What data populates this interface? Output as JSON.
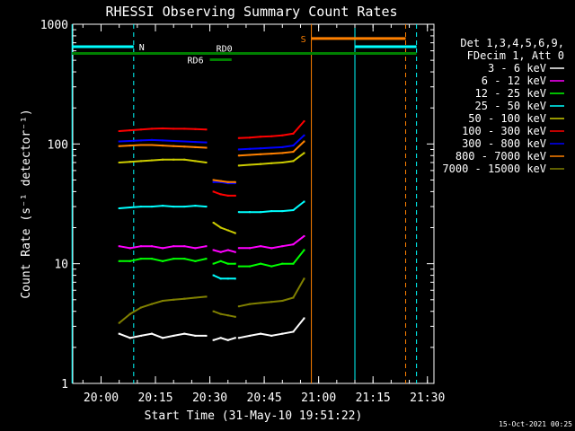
{
  "chart_data": {
    "type": "line",
    "title": "RHESSI Observing Summary Count Rates",
    "xlabel": "Start Time (31-May-10 19:51:22)",
    "ylabel": "Count Rate (s⁻¹ detector⁻¹)",
    "yscale": "log",
    "ylim": [
      1,
      1000
    ],
    "xlim_minutes": [
      19.87,
      21.53
    ],
    "xticks": [
      "20:00",
      "20:15",
      "20:30",
      "20:45",
      "21:00",
      "21:15",
      "21:30"
    ],
    "yticks": [
      "1",
      "10",
      "100",
      "1000"
    ],
    "grid": false,
    "legend_position": "right",
    "legend_header": [
      "Det 1,3,4,5,6,9,",
      "FDecim 1, Att 0"
    ],
    "series": [
      {
        "name": "3 - 6 keV",
        "color": "#ffffff",
        "segments": [
          {
            "x": [
              "20:05",
              "20:08",
              "20:11",
              "20:14",
              "20:17",
              "20:20",
              "20:23",
              "20:26",
              "20:29"
            ],
            "y": [
              2.6,
              2.4,
              2.5,
              2.6,
              2.4,
              2.5,
              2.6,
              2.5,
              2.5
            ]
          },
          {
            "x": [
              "20:31",
              "20:33",
              "20:35",
              "20:37"
            ],
            "y": [
              2.3,
              2.4,
              2.3,
              2.4
            ]
          },
          {
            "x": [
              "20:38",
              "20:41",
              "20:44",
              "20:47",
              "20:50",
              "20:53",
              "20:56"
            ],
            "y": [
              2.4,
              2.5,
              2.6,
              2.5,
              2.6,
              2.7,
              3.5
            ]
          }
        ]
      },
      {
        "name": "6 - 12 keV",
        "color": "#ff00ff",
        "segments": [
          {
            "x": [
              "20:05",
              "20:08",
              "20:11",
              "20:14",
              "20:17",
              "20:20",
              "20:23",
              "20:26",
              "20:29"
            ],
            "y": [
              14,
              13.5,
              14,
              14,
              13.5,
              14,
              14,
              13.5,
              14
            ]
          },
          {
            "x": [
              "20:31",
              "20:33",
              "20:35",
              "20:37"
            ],
            "y": [
              13,
              12.5,
              13,
              12.5
            ]
          },
          {
            "x": [
              "20:38",
              "20:41",
              "20:44",
              "20:47",
              "20:50",
              "20:53",
              "20:56"
            ],
            "y": [
              13.5,
              13.5,
              14,
              13.5,
              14,
              14.5,
              17
            ]
          }
        ]
      },
      {
        "name": "12 - 25 keV",
        "color": "#00ff00",
        "segments": [
          {
            "x": [
              "20:05",
              "20:08",
              "20:11",
              "20:14",
              "20:17",
              "20:20",
              "20:23",
              "20:26",
              "20:29"
            ],
            "y": [
              10.5,
              10.5,
              11,
              11,
              10.5,
              11,
              11,
              10.5,
              11
            ]
          },
          {
            "x": [
              "20:31",
              "20:33",
              "20:35",
              "20:37"
            ],
            "y": [
              10,
              10.5,
              10,
              10
            ]
          },
          {
            "x": [
              "20:38",
              "20:41",
              "20:44",
              "20:47",
              "20:50",
              "20:53",
              "20:56"
            ],
            "y": [
              9.5,
              9.5,
              10,
              9.5,
              10,
              10,
              13
            ]
          }
        ]
      },
      {
        "name": "25 - 50 keV",
        "color": "#00ffff",
        "segments": [
          {
            "x": [
              "20:05",
              "20:08",
              "20:11",
              "20:14",
              "20:17",
              "20:20",
              "20:23",
              "20:26",
              "20:29"
            ],
            "y": [
              29,
              29.5,
              30,
              30,
              30.5,
              30,
              30,
              30.5,
              30
            ]
          },
          {
            "x": [
              "20:31",
              "20:33",
              "20:35",
              "20:37"
            ],
            "y": [
              8,
              7.5,
              7.5,
              7.5
            ]
          },
          {
            "x": [
              "20:38",
              "20:41",
              "20:44",
              "20:47",
              "20:50",
              "20:53",
              "20:56"
            ],
            "y": [
              27,
              27,
              27,
              27.5,
              27.5,
              28,
              33
            ]
          }
        ]
      },
      {
        "name": "50 - 100 keV",
        "color": "#cccc00",
        "segments": [
          {
            "x": [
              "20:05",
              "20:08",
              "20:11",
              "20:14",
              "20:17",
              "20:20",
              "20:23",
              "20:26",
              "20:29"
            ],
            "y": [
              70,
              71,
              72,
              73,
              74,
              74,
              74,
              72,
              70
            ]
          },
          {
            "x": [
              "20:31",
              "20:33",
              "20:35",
              "20:37"
            ],
            "y": [
              22,
              20,
              19,
              18
            ]
          },
          {
            "x": [
              "20:38",
              "20:41",
              "20:44",
              "20:47",
              "20:50",
              "20:53",
              "20:56"
            ],
            "y": [
              66,
              67,
              68,
              69,
              70,
              72,
              84
            ]
          }
        ]
      },
      {
        "name": "100 - 300 keV",
        "color": "#ff0000",
        "segments": [
          {
            "x": [
              "20:05",
              "20:08",
              "20:11",
              "20:14",
              "20:17",
              "20:20",
              "20:23",
              "20:26",
              "20:29"
            ],
            "y": [
              128,
              130,
              132,
              134,
              135,
              134,
              134,
              133,
              132
            ]
          },
          {
            "x": [
              "20:31",
              "20:33",
              "20:35",
              "20:37"
            ],
            "y": [
              40,
              38,
              37,
              37
            ]
          },
          {
            "x": [
              "20:38",
              "20:41",
              "20:44",
              "20:47",
              "20:50",
              "20:53",
              "20:56"
            ],
            "y": [
              112,
              113,
              115,
              116,
              118,
              122,
              155
            ]
          }
        ]
      },
      {
        "name": "300 - 800 keV",
        "color": "#0000ff",
        "segments": [
          {
            "x": [
              "20:05",
              "20:08",
              "20:11",
              "20:14",
              "20:17",
              "20:20",
              "20:23",
              "20:26",
              "20:29"
            ],
            "y": [
              105,
              106,
              107,
              108,
              107,
              106,
              105,
              104,
              103
            ]
          },
          {
            "x": [
              "20:31",
              "20:33",
              "20:35",
              "20:37"
            ],
            "y": [
              48,
              48,
              47,
              47
            ]
          },
          {
            "x": [
              "20:38",
              "20:41",
              "20:44",
              "20:47",
              "20:50",
              "20:53",
              "20:56"
            ],
            "y": [
              90,
              91,
              92,
              93,
              94,
              97,
              118
            ]
          }
        ]
      },
      {
        "name": "800 - 7000 keV",
        "color": "#ff8000",
        "segments": [
          {
            "x": [
              "20:05",
              "20:08",
              "20:11",
              "20:14",
              "20:17",
              "20:20",
              "20:23",
              "20:26",
              "20:29"
            ],
            "y": [
              96,
              97,
              98,
              98,
              97,
              96,
              95,
              94,
              93
            ]
          },
          {
            "x": [
              "20:31",
              "20:33",
              "20:35",
              "20:37"
            ],
            "y": [
              50,
              49,
              48,
              48
            ]
          },
          {
            "x": [
              "20:38",
              "20:41",
              "20:44",
              "20:47",
              "20:50",
              "20:53",
              "20:56"
            ],
            "y": [
              80,
              81,
              82,
              83,
              84,
              86,
              105
            ]
          }
        ]
      },
      {
        "name": "7000 - 15000 keV",
        "color": "#808000",
        "segments": [
          {
            "x": [
              "20:05",
              "20:08",
              "20:11",
              "20:14",
              "20:17",
              "20:20",
              "20:23",
              "20:26",
              "20:29"
            ],
            "y": [
              3.2,
              3.8,
              4.3,
              4.6,
              4.9,
              5.0,
              5.1,
              5.2,
              5.3
            ]
          },
          {
            "x": [
              "20:31",
              "20:33",
              "20:35",
              "20:37"
            ],
            "y": [
              4.0,
              3.8,
              3.7,
              3.6
            ]
          },
          {
            "x": [
              "20:38",
              "20:41",
              "20:44",
              "20:47",
              "20:50",
              "20:53",
              "20:56"
            ],
            "y": [
              4.4,
              4.6,
              4.7,
              4.8,
              4.9,
              5.2,
              7.5
            ]
          }
        ]
      }
    ],
    "annotations": {
      "cyan_vlines": [
        "19:52",
        "20:09",
        "21:10",
        "21:27"
      ],
      "orange_vlines": [
        "20:58",
        "21:24"
      ],
      "orange_dashed": [
        "21:24"
      ],
      "cyan_dashed": [
        "20:09",
        "21:27"
      ],
      "night_bars": [
        {
          "label": "N",
          "from": "19:52",
          "to": "20:09",
          "level": 650
        },
        {
          "label": "",
          "from": "21:10",
          "to": "21:27",
          "level": 650
        }
      ],
      "saa_bar": {
        "label": "S",
        "from": "20:58",
        "to": "21:24",
        "level": 760
      },
      "rd0_bar": {
        "label": "RD0",
        "from": "19:52",
        "to": "21:27",
        "level": 570
      },
      "rd6_bar": {
        "label": "RD6",
        "from": "20:30",
        "to": "20:36",
        "level": 505
      }
    }
  },
  "footer_date": "15-Oct-2021 00:25"
}
